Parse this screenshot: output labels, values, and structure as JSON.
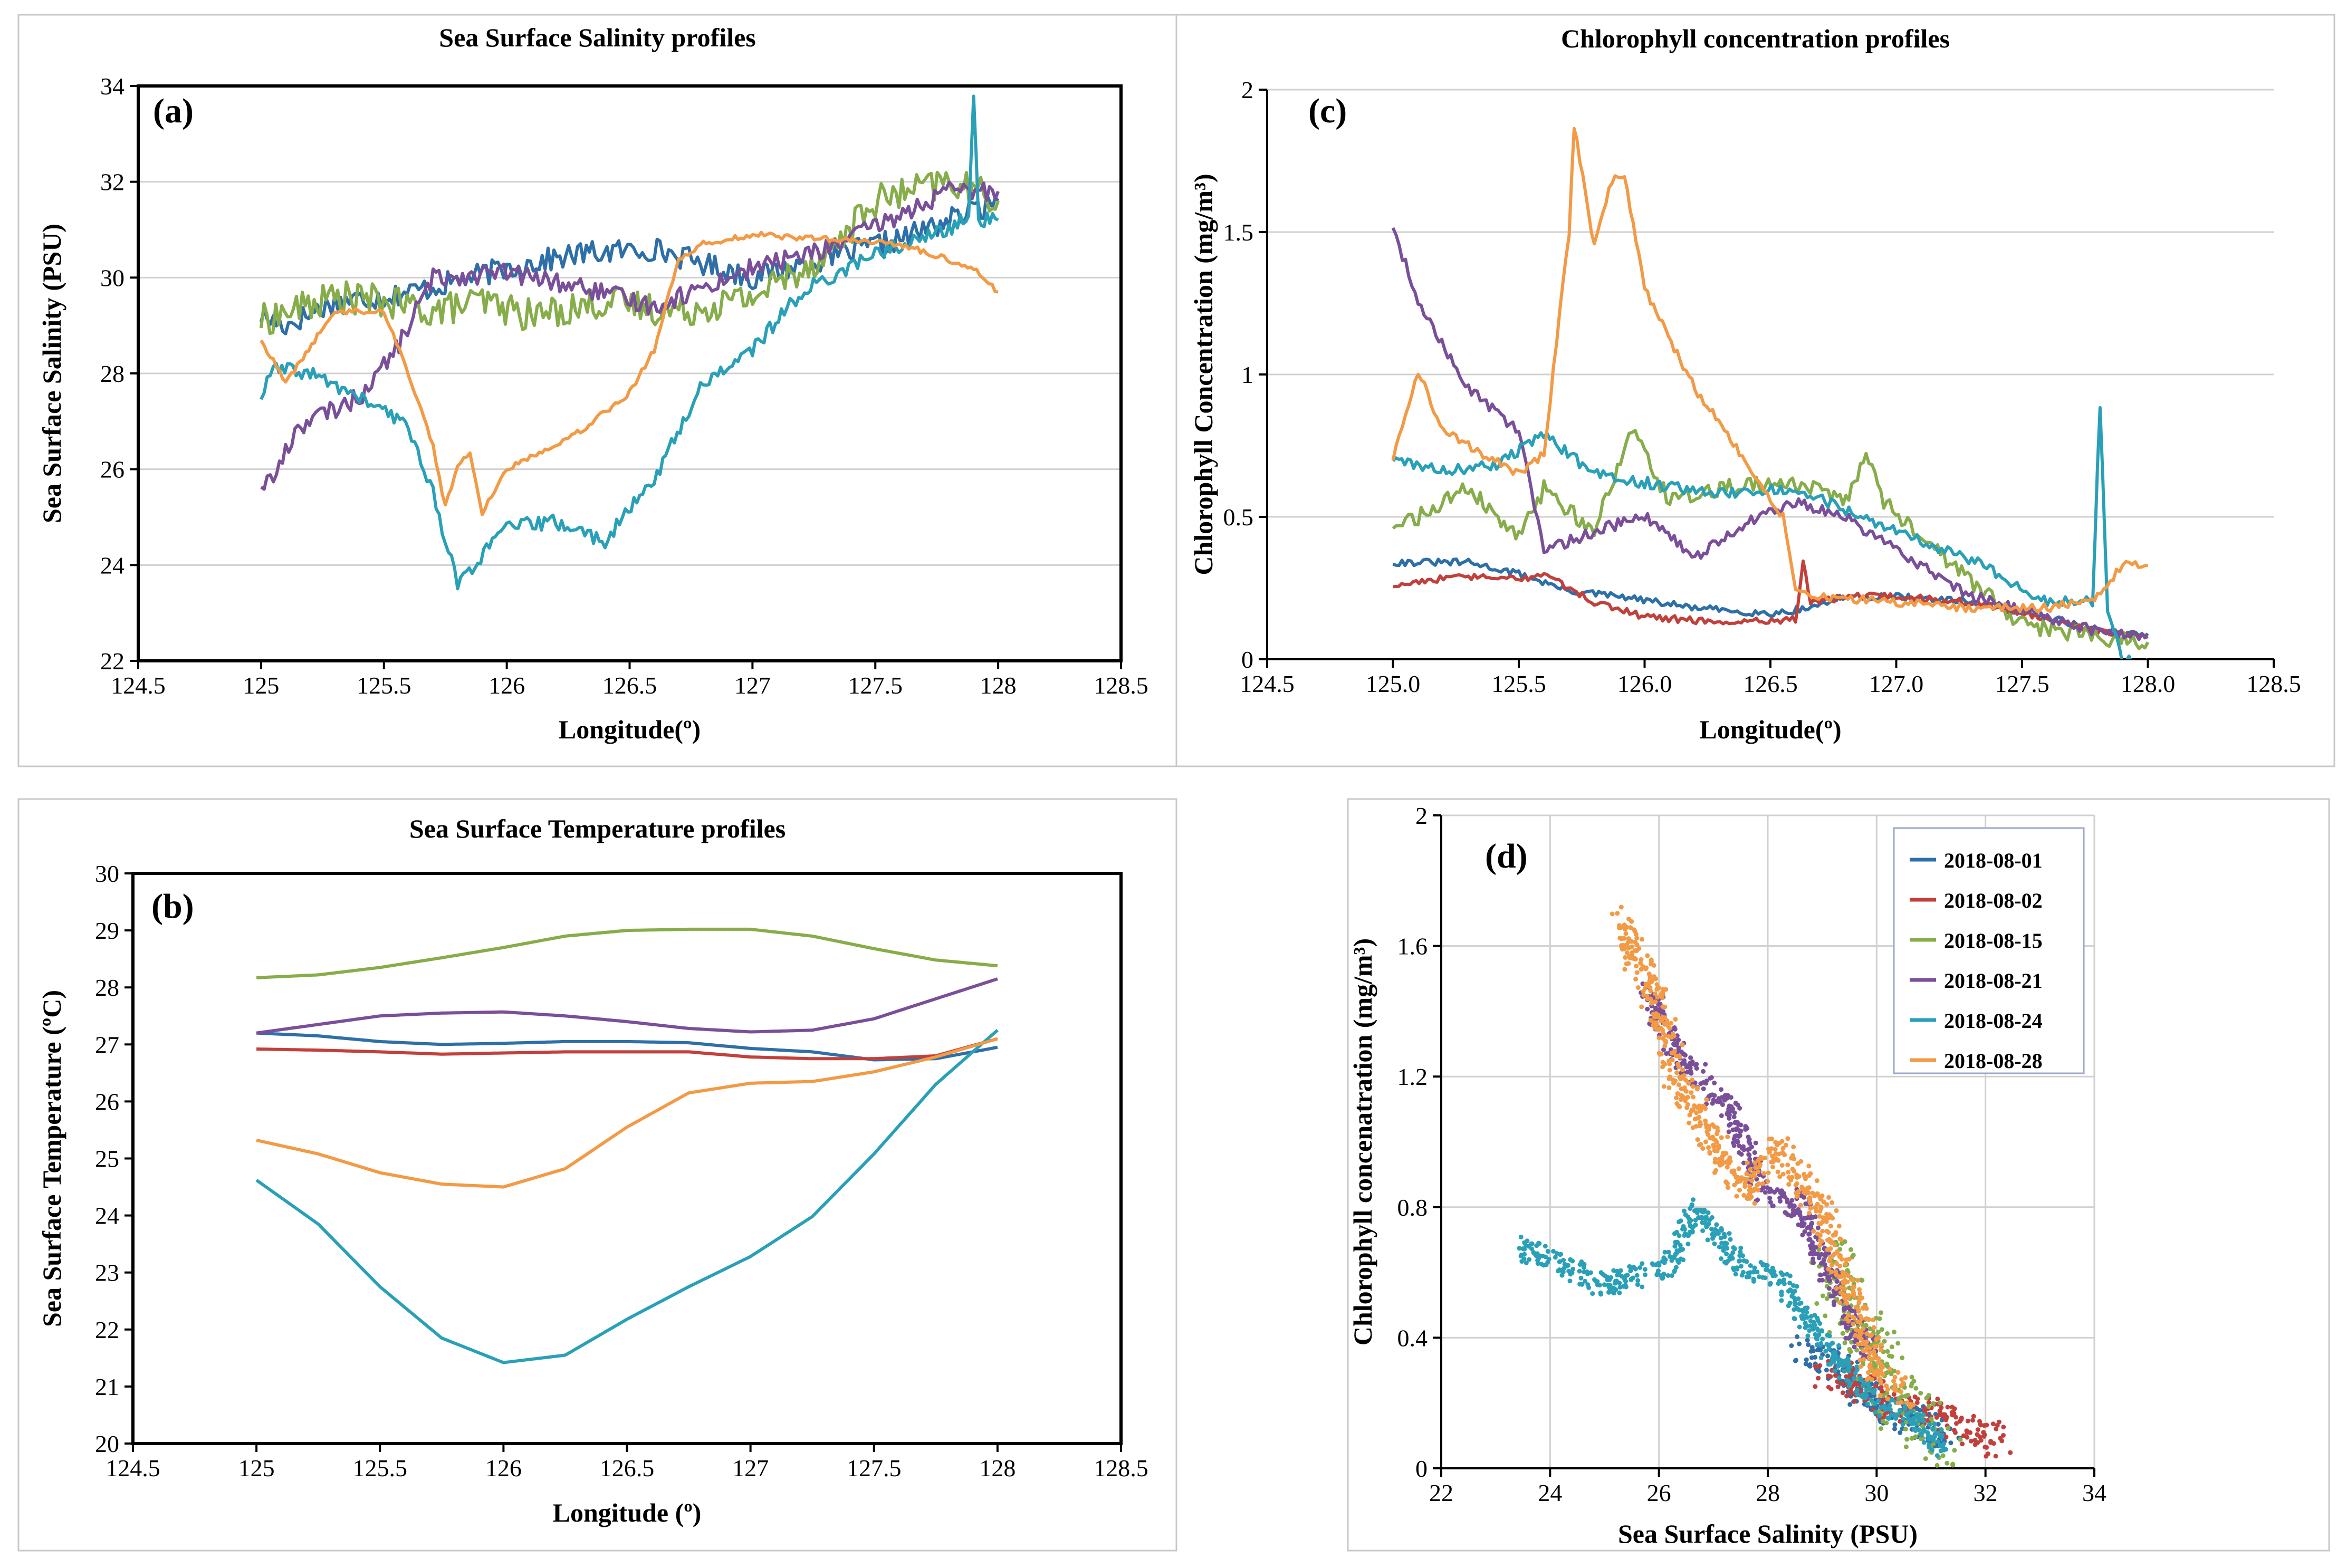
{
  "colors": {
    "d01": "#2e6fa8",
    "d02": "#c2403c",
    "d15": "#86ad4a",
    "d21": "#7a4f9a",
    "d24": "#2aa0b8",
    "d28": "#f29a45"
  },
  "chart_data": [
    {
      "panel": "a",
      "type": "line",
      "title": "Sea Surface Salinity profiles",
      "tag": "(a)",
      "xlabel": "Longitude(º)",
      "ylabel": "Sea Surface Salinity (PSU)",
      "xlim": [
        124.5,
        128.5
      ],
      "ylim": [
        22,
        34
      ],
      "xticks": [
        "124.5",
        "125",
        "125.5",
        "126",
        "126.5",
        "127",
        "127.5",
        "128",
        "128.5"
      ],
      "yticks": [
        "22",
        "24",
        "26",
        "28",
        "30",
        "32",
        "34"
      ],
      "grid": true,
      "series": [
        {
          "name": "2018-08-01",
          "color": "d01",
          "jitter": 0.25,
          "x": [
            125,
            125.1,
            125.3,
            125.5,
            125.7,
            126,
            126.3,
            126.6,
            126.8,
            127,
            127.3,
            127.6,
            127.8,
            128
          ],
          "y": [
            29.2,
            29,
            29.5,
            29.6,
            29.8,
            30.2,
            30.5,
            30.6,
            30.3,
            30,
            30.4,
            30.8,
            31.2,
            31.6
          ]
        },
        {
          "name": "2018-08-15",
          "color": "d15",
          "jitter": 0.35,
          "x": [
            125,
            125.3,
            125.5,
            125.7,
            125.9,
            126.1,
            126.4,
            126.7,
            127,
            127.3,
            127.5,
            127.8,
            128
          ],
          "y": [
            29.1,
            29.6,
            29.5,
            29.3,
            29.5,
            29.2,
            29.5,
            29.3,
            29.6,
            30.5,
            31.6,
            32,
            31.6
          ]
        },
        {
          "name": "2018-08-21",
          "color": "d21",
          "jitter": 0.2,
          "x": [
            125,
            125.05,
            125.15,
            125.4,
            125.55,
            125.7,
            126,
            126.3,
            126.6,
            126.8,
            127,
            127.3,
            127.6,
            127.8,
            128
          ],
          "y": [
            25.7,
            25.8,
            26.9,
            27.5,
            28.5,
            30,
            30.1,
            29.8,
            29.4,
            29.8,
            30.2,
            30.6,
            31.3,
            31.8,
            31.8
          ]
        },
        {
          "name": "2018-08-24",
          "color": "d24",
          "jitter": 0.15,
          "x": [
            125,
            125.05,
            125.2,
            125.4,
            125.6,
            125.7,
            125.8,
            126,
            126.2,
            126.4,
            126.6,
            126.8,
            127,
            127.2,
            127.5,
            127.8,
            127.88,
            127.9,
            127.92,
            128
          ],
          "y": [
            27.5,
            28.1,
            28,
            27.5,
            26.9,
            25.5,
            23.6,
            24.8,
            24.9,
            24.5,
            25.8,
            27.8,
            28.5,
            29.7,
            30.5,
            31,
            31.3,
            33.8,
            31.2,
            31.2
          ]
        },
        {
          "name": "2018-08-28",
          "color": "d28",
          "jitter": 0.06,
          "x": [
            125,
            125.1,
            125.3,
            125.5,
            125.6,
            125.7,
            125.75,
            125.8,
            125.85,
            125.9,
            126,
            126.3,
            126.5,
            126.6,
            126.7,
            126.8,
            127,
            127.3,
            127.6,
            127.9,
            128
          ],
          "y": [
            28.7,
            27.8,
            29.3,
            29.3,
            28,
            26.5,
            25.2,
            26.1,
            26.3,
            25.1,
            26,
            26.8,
            27.6,
            28.5,
            30.4,
            30.7,
            30.9,
            30.8,
            30.7,
            30.2,
            29.7
          ]
        }
      ]
    },
    {
      "panel": "b",
      "type": "line",
      "title": "Sea Surface Temperature profiles",
      "tag": "(b)",
      "xlabel": "Longitude (º)",
      "ylabel": "Sea Surface Temperature (ºC)",
      "xlim": [
        124.5,
        128.5
      ],
      "ylim": [
        20,
        30
      ],
      "xticks": [
        "124.5",
        "125",
        "125.5",
        "126",
        "126.5",
        "127",
        "127.5",
        "128",
        "128.5"
      ],
      "yticks": [
        "20",
        "21",
        "22",
        "23",
        "24",
        "25",
        "26",
        "27",
        "28",
        "29",
        "30"
      ],
      "grid": false,
      "series": [
        {
          "name": "2018-08-01",
          "color": "d01",
          "jitter": 0,
          "x": [
            125,
            125.25,
            125.5,
            125.75,
            126,
            126.25,
            126.5,
            126.75,
            127,
            127.25,
            127.5,
            127.75,
            128
          ],
          "y": [
            27.2,
            27.15,
            27.05,
            27.0,
            27.02,
            27.05,
            27.05,
            27.03,
            26.93,
            26.87,
            26.73,
            26.75,
            26.95
          ]
        },
        {
          "name": "2018-08-02",
          "color": "d02",
          "jitter": 0,
          "x": [
            125,
            125.25,
            125.5,
            125.75,
            126,
            126.25,
            126.5,
            126.75,
            127,
            127.25,
            127.5,
            127.75,
            128
          ],
          "y": [
            26.92,
            26.9,
            26.87,
            26.83,
            26.85,
            26.87,
            26.87,
            26.87,
            26.78,
            26.75,
            26.75,
            26.8,
            27.1
          ]
        },
        {
          "name": "2018-08-15",
          "color": "d15",
          "jitter": 0,
          "x": [
            125,
            125.25,
            125.5,
            125.75,
            126,
            126.25,
            126.5,
            126.75,
            127,
            127.25,
            127.5,
            127.75,
            128
          ],
          "y": [
            28.17,
            28.22,
            28.35,
            28.52,
            28.7,
            28.9,
            29.0,
            29.02,
            29.02,
            28.9,
            28.68,
            28.48,
            28.38
          ]
        },
        {
          "name": "2018-08-21",
          "color": "d21",
          "jitter": 0,
          "x": [
            125,
            125.25,
            125.5,
            125.75,
            126,
            126.25,
            126.5,
            126.75,
            127,
            127.25,
            127.5,
            127.75,
            128
          ],
          "y": [
            27.2,
            27.35,
            27.5,
            27.55,
            27.57,
            27.5,
            27.4,
            27.28,
            27.22,
            27.25,
            27.45,
            27.8,
            28.15
          ]
        },
        {
          "name": "2018-08-24",
          "color": "d24",
          "jitter": 0,
          "x": [
            125,
            125.25,
            125.5,
            125.75,
            126,
            126.25,
            126.5,
            126.75,
            127,
            127.25,
            127.5,
            127.75,
            128
          ],
          "y": [
            24.62,
            23.85,
            22.75,
            21.85,
            21.42,
            21.55,
            22.18,
            22.75,
            23.28,
            23.98,
            25.08,
            26.3,
            27.25
          ]
        },
        {
          "name": "2018-08-28",
          "color": "d28",
          "jitter": 0,
          "x": [
            125,
            125.25,
            125.5,
            125.75,
            126,
            126.25,
            126.5,
            126.75,
            127,
            127.25,
            127.5,
            127.75,
            128
          ],
          "y": [
            25.32,
            25.08,
            24.75,
            24.55,
            24.5,
            24.82,
            25.55,
            26.15,
            26.32,
            26.35,
            26.52,
            26.78,
            27.1
          ]
        }
      ]
    },
    {
      "panel": "c",
      "type": "line",
      "title": "Chlorophyll concentration profiles",
      "tag": "(c)",
      "xlabel": "Longitude(º)",
      "ylabel": "Chlorophyll Concentration (mg/m³)",
      "xlim": [
        124.5,
        128.5
      ],
      "ylim": [
        0,
        2
      ],
      "xticks": [
        "124.5",
        "125.0",
        "125.5",
        "126.0",
        "126.5",
        "127.0",
        "127.5",
        "128.0",
        "128.5"
      ],
      "yticks": [
        "0",
        "0.5",
        "1",
        "1.5",
        "2"
      ],
      "grid": true,
      "series": [
        {
          "name": "2018-08-01",
          "color": "d01",
          "jitter": 0.012,
          "x": [
            125,
            125.3,
            125.5,
            125.7,
            125.9,
            126.2,
            126.5,
            126.65,
            126.8,
            127,
            127.3,
            127.6,
            127.8,
            128
          ],
          "y": [
            0.34,
            0.34,
            0.3,
            0.24,
            0.22,
            0.18,
            0.16,
            0.18,
            0.22,
            0.22,
            0.2,
            0.15,
            0.1,
            0.09
          ]
        },
        {
          "name": "2018-08-02",
          "color": "d02",
          "jitter": 0.012,
          "x": [
            125,
            125.15,
            125.3,
            125.5,
            125.6,
            125.8,
            126,
            126.3,
            126.6,
            126.63,
            126.66,
            126.8,
            127,
            127.3,
            127.6,
            127.8,
            128
          ],
          "y": [
            0.26,
            0.28,
            0.29,
            0.28,
            0.3,
            0.2,
            0.15,
            0.13,
            0.14,
            0.34,
            0.2,
            0.22,
            0.22,
            0.2,
            0.14,
            0.1,
            0.08
          ]
        },
        {
          "name": "2018-08-15",
          "color": "d15",
          "jitter": 0.03,
          "x": [
            125,
            125.1,
            125.3,
            125.5,
            125.6,
            125.8,
            125.95,
            126.1,
            126.3,
            126.6,
            126.8,
            126.88,
            126.95,
            127.2,
            127.5,
            127.8,
            128
          ],
          "y": [
            0.47,
            0.5,
            0.6,
            0.42,
            0.6,
            0.45,
            0.8,
            0.55,
            0.6,
            0.62,
            0.55,
            0.72,
            0.55,
            0.35,
            0.12,
            0.08,
            0.06
          ]
        },
        {
          "name": "2018-08-21",
          "color": "d21",
          "jitter": 0.02,
          "x": [
            125,
            125.1,
            125.3,
            125.5,
            125.6,
            125.8,
            126,
            126.2,
            126.4,
            126.6,
            126.8,
            127,
            127.3,
            127.6,
            127.8,
            128
          ],
          "y": [
            1.52,
            1.25,
            0.95,
            0.8,
            0.38,
            0.45,
            0.5,
            0.36,
            0.48,
            0.55,
            0.5,
            0.38,
            0.22,
            0.15,
            0.1,
            0.08
          ]
        },
        {
          "name": "2018-08-24",
          "color": "d24",
          "jitter": 0.02,
          "x": [
            125,
            125.2,
            125.4,
            125.6,
            125.8,
            126,
            126.3,
            126.6,
            126.8,
            127,
            127.3,
            127.6,
            127.78,
            127.81,
            127.84,
            127.9,
            128
          ],
          "y": [
            0.7,
            0.66,
            0.68,
            0.79,
            0.65,
            0.62,
            0.58,
            0.6,
            0.52,
            0.45,
            0.35,
            0.2,
            0.2,
            0.9,
            0.15,
            0.0,
            0.0
          ]
        },
        {
          "name": "2018-08-28",
          "color": "d28",
          "jitter": 0.015,
          "x": [
            125,
            125.1,
            125.2,
            125.3,
            125.5,
            125.6,
            125.7,
            125.72,
            125.8,
            125.87,
            125.92,
            126,
            126.2,
            126.4,
            126.55,
            126.6,
            126.7,
            127,
            127.3,
            127.6,
            127.8,
            127.9,
            128
          ],
          "y": [
            0.7,
            1.01,
            0.8,
            0.75,
            0.65,
            0.72,
            1.5,
            1.87,
            1.45,
            1.68,
            1.7,
            1.3,
            0.95,
            0.7,
            0.5,
            0.25,
            0.22,
            0.2,
            0.18,
            0.18,
            0.22,
            0.33,
            0.33
          ]
        }
      ]
    },
    {
      "panel": "d",
      "type": "scatter",
      "tag": "(d)",
      "xlabel": "Sea Surface Salinity (PSU)",
      "ylabel": "Chlorophyll concenatration (mg/m³)",
      "xlim": [
        22,
        34
      ],
      "ylim": [
        0,
        2
      ],
      "xticks": [
        "22",
        "24",
        "26",
        "28",
        "30",
        "32",
        "34"
      ],
      "yticks": [
        "0",
        "0.4",
        "0.8",
        "1.2",
        "1.6",
        "2"
      ],
      "grid": true,
      "legend_position": "top-right",
      "series": [
        {
          "name": "2018-08-01",
          "color": "d01",
          "spread": 0.05,
          "x": [
            28.6,
            29.2,
            29.8,
            30.2,
            30.8,
            31.4
          ],
          "y": [
            0.36,
            0.34,
            0.22,
            0.17,
            0.14,
            0.1
          ]
        },
        {
          "name": "2018-08-02",
          "color": "d02",
          "spread": 0.05,
          "x": [
            29,
            29.6,
            30.2,
            30.9,
            31.6,
            32.3
          ],
          "y": [
            0.3,
            0.27,
            0.2,
            0.18,
            0.12,
            0.08
          ]
        },
        {
          "name": "2018-08-15",
          "color": "d15",
          "spread": 0.09,
          "x": [
            29,
            29.3,
            29.5,
            29.8,
            30.4,
            31.2
          ],
          "y": [
            0.58,
            0.62,
            0.48,
            0.4,
            0.2,
            0.08
          ]
        },
        {
          "name": "2018-08-21",
          "color": "d21",
          "spread": 0.04,
          "x": [
            25.7,
            26.4,
            27.3,
            27.9,
            28.6,
            29.3,
            29.9
          ],
          "y": [
            1.48,
            1.25,
            1.1,
            0.85,
            0.8,
            0.52,
            0.35
          ]
        },
        {
          "name": "2018-08-24",
          "color": "d24",
          "spread": 0.035,
          "x": [
            23.4,
            24.3,
            25,
            26.2,
            26.7,
            27.5,
            28.2,
            29.2,
            30,
            30.8,
            31.2
          ],
          "y": [
            0.68,
            0.62,
            0.56,
            0.62,
            0.79,
            0.62,
            0.58,
            0.35,
            0.2,
            0.15,
            0.05
          ]
        },
        {
          "name": "2018-08-28",
          "color": "d28",
          "spread": 0.05,
          "x": [
            25.2,
            25.6,
            26,
            26.3,
            27,
            27.6,
            28.2,
            29,
            29.5,
            30,
            30.5
          ],
          "y": [
            1.7,
            1.55,
            1.42,
            1.2,
            1.0,
            0.85,
            0.98,
            0.78,
            0.55,
            0.3,
            0.22
          ]
        }
      ]
    }
  ],
  "legend": {
    "items": [
      {
        "label": "2018-08-01",
        "color": "d01"
      },
      {
        "label": "2018-08-02",
        "color": "d02"
      },
      {
        "label": "2018-08-15",
        "color": "d15"
      },
      {
        "label": "2018-08-21",
        "color": "d21"
      },
      {
        "label": "2018-08-24",
        "color": "d24"
      },
      {
        "label": "2018-08-28",
        "color": "d28"
      }
    ]
  }
}
